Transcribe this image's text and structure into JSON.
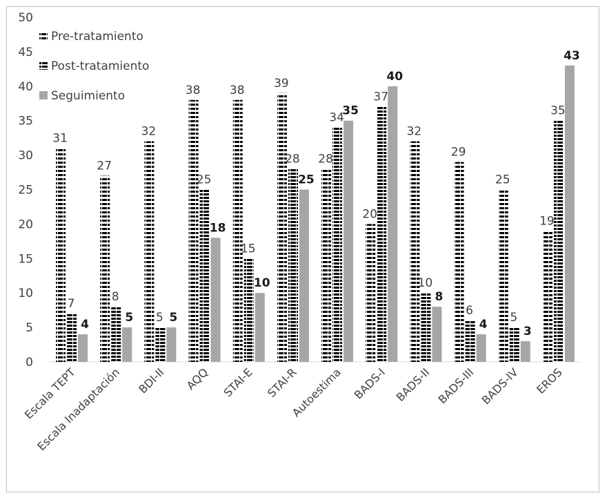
{
  "chart_data": {
    "type": "bar",
    "categories": [
      "Escala TEPT",
      "Escala Inadaptación",
      "BDI-II",
      "AQQ",
      "STAI-E",
      "STAI-R",
      "Autoestima",
      "BADS-I",
      "BADS-II",
      "BADS-III",
      "BADS-IV",
      "EROS"
    ],
    "series": [
      {
        "name": "Pre-tratamiento",
        "values": [
          31,
          27,
          32,
          38,
          38,
          39,
          28,
          20,
          32,
          29,
          25,
          19
        ],
        "color": "#000000",
        "pattern": "horizontal-stripes"
      },
      {
        "name": "Post-tratamiento",
        "values": [
          7,
          8,
          5,
          25,
          15,
          28,
          34,
          37,
          10,
          6,
          5,
          35
        ],
        "color": "#000000",
        "pattern": "dense-horizontal-stripes"
      },
      {
        "name": "Seguimiento",
        "values": [
          4,
          5,
          5,
          18,
          10,
          25,
          35,
          40,
          8,
          4,
          3,
          43
        ],
        "color": "#a6a6a6",
        "pattern": "solid",
        "bold_labels": true
      }
    ],
    "ylim": [
      0,
      50
    ],
    "yticks": [
      0,
      5,
      10,
      15,
      20,
      25,
      30,
      35,
      40,
      45,
      50
    ],
    "grid": false,
    "legend_position": "top-left",
    "title": "",
    "xlabel": "",
    "ylabel": ""
  }
}
